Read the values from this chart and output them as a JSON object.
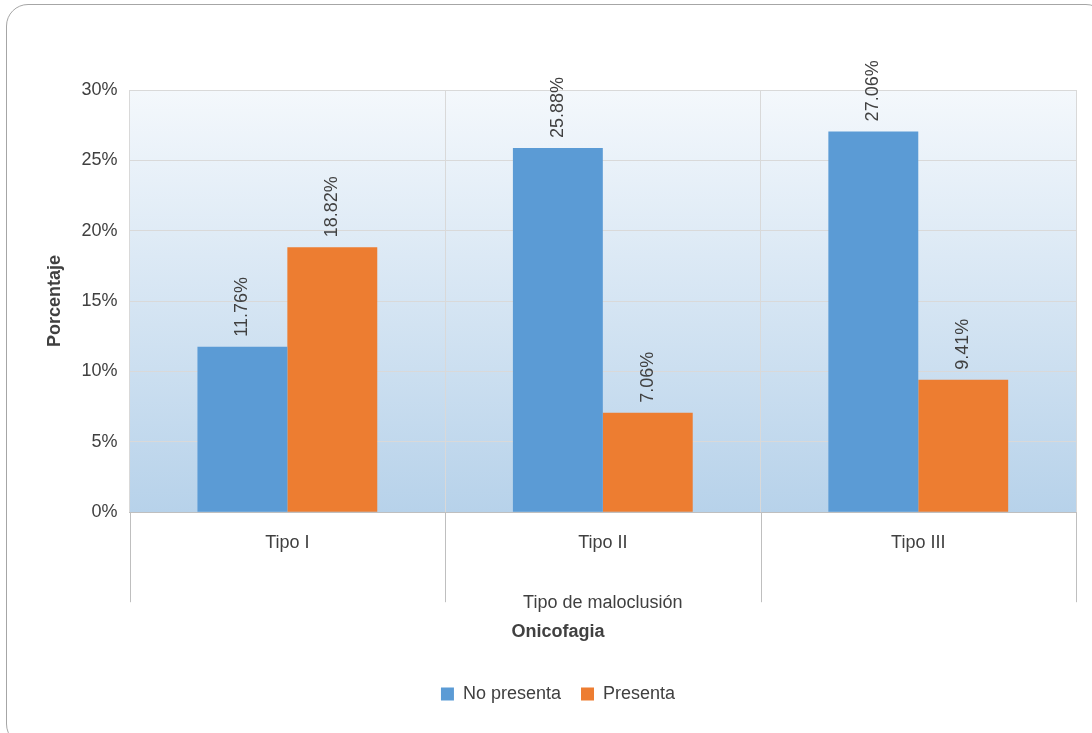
{
  "chart_data": {
    "type": "bar",
    "categories": [
      "Tipo I",
      "Tipo II",
      "Tipo III"
    ],
    "xlabel": "Tipo de maloclusión",
    "ylabel": "Porcentaje",
    "legend_title": "Onicofagia",
    "series": [
      {
        "name": "No presenta",
        "color": "#5b9bd5",
        "values": [
          11.76,
          25.88,
          27.06
        ],
        "value_labels": [
          "11.76%",
          "25.88%",
          "27.06%"
        ]
      },
      {
        "name": "Presenta",
        "color": "#ed7d31",
        "values": [
          18.82,
          7.06,
          9.41
        ],
        "value_labels": [
          "18.82%",
          "7.06%",
          "9.41%"
        ]
      }
    ],
    "ylim": [
      0,
      30
    ],
    "yticks": [
      {
        "value": 0,
        "label": "0%"
      },
      {
        "value": 5,
        "label": "5%"
      },
      {
        "value": 10,
        "label": "10%"
      },
      {
        "value": 15,
        "label": "15%"
      },
      {
        "value": 20,
        "label": "20%"
      },
      {
        "value": 25,
        "label": "25%"
      },
      {
        "value": 30,
        "label": "30%"
      }
    ],
    "grid": true,
    "legend": "bottom"
  }
}
